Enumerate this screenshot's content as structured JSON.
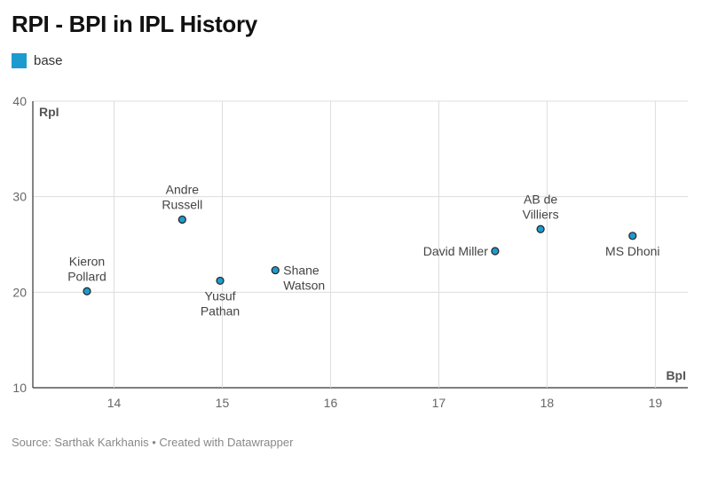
{
  "chart_data": {
    "type": "scatter",
    "title": "RPI - BPI in IPL History",
    "legend": [
      {
        "label": "base",
        "color": "#1d9bce"
      }
    ],
    "xlabel": "BpI",
    "ylabel": "RpI",
    "xlim": [
      13.25,
      19.3
    ],
    "ylim": [
      10,
      40
    ],
    "xticks": [
      "14",
      "15",
      "16",
      "17",
      "18",
      "19"
    ],
    "yticks": [
      "10",
      "20",
      "30",
      "40"
    ],
    "grid": true,
    "points": [
      {
        "name": "Kieron Pollard",
        "lines": [
          "Kieron",
          "Pollard"
        ],
        "x": 13.75,
        "y": 20.1,
        "label_position": "top"
      },
      {
        "name": "Andre Russell",
        "lines": [
          "Andre",
          "Russell"
        ],
        "x": 14.63,
        "y": 27.6,
        "label_position": "top"
      },
      {
        "name": "Yusuf Pathan",
        "lines": [
          "Yusuf",
          "Pathan"
        ],
        "x": 14.98,
        "y": 21.2,
        "label_position": "bottom"
      },
      {
        "name": "Shane Watson",
        "lines": [
          "Shane",
          "Watson"
        ],
        "x": 15.49,
        "y": 22.3,
        "label_position": "right"
      },
      {
        "name": "David Miller",
        "lines": [
          "David Miller"
        ],
        "x": 17.52,
        "y": 24.3,
        "label_position": "left"
      },
      {
        "name": "AB de Villiers",
        "lines": [
          "AB de",
          "Villiers"
        ],
        "x": 17.94,
        "y": 26.6,
        "label_position": "top"
      },
      {
        "name": "MS Dhoni",
        "lines": [
          "MS Dhoni"
        ],
        "x": 18.79,
        "y": 25.9,
        "label_position": "bottom"
      }
    ],
    "source": "Source: Sarthak Karkhanis • Created with Datawrapper"
  }
}
